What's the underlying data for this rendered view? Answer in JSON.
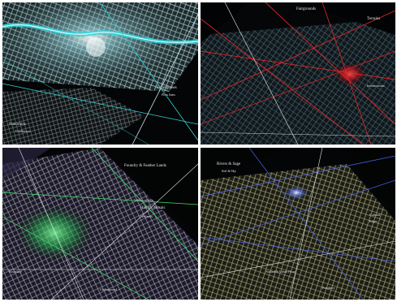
{
  "panels": [
    {
      "id": "top-left",
      "accent": "#2fd3d8",
      "labels": [
        "Nanoruins",
        "Ecoregiones",
        "Confluence",
        "Flow lines"
      ]
    },
    {
      "id": "top-right",
      "accent": "#e2262a",
      "labels": [
        "Fairgrounds",
        "Terrains",
        "Infrastructure"
      ]
    },
    {
      "id": "bottom-left",
      "accent": "#39e36a",
      "labels": [
        "Foundry & Feather Lands",
        "Valleys of Iron",
        "Habitat Mosaic",
        "Wetlands",
        "Boundary",
        "Underground"
      ]
    },
    {
      "id": "bottom-right",
      "accent": "#4a63e6",
      "labels": [
        "Rivers & Sage",
        "Soil & Sky",
        "Cultural",
        "Edges",
        "Periphery",
        "Natural & Urban Flows"
      ]
    }
  ]
}
